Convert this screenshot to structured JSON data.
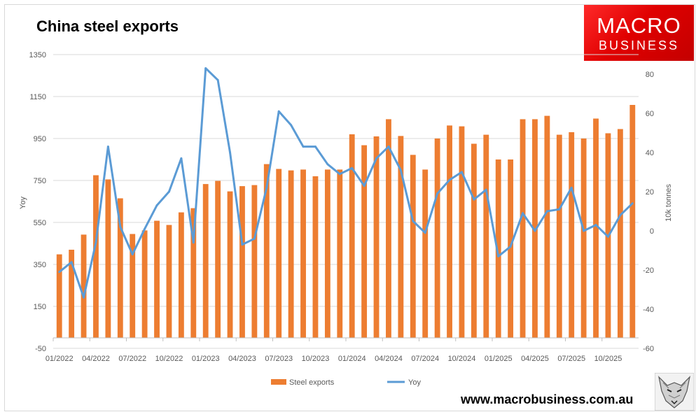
{
  "title": "China steel exports",
  "logo": {
    "line1": "MACRO",
    "line2": "BUSINESS"
  },
  "website": "www.macrobusiness.com.au",
  "colors": {
    "bars": "#ed7d31",
    "line": "#5b9bd5",
    "logo": "#e60000",
    "grid": "#d9d9d9"
  },
  "chart_data": {
    "type": "bar",
    "title": "China steel exports",
    "ylabel": "Yoy",
    "y2label": "10k tonnes",
    "ylim": [
      -50,
      1350
    ],
    "yticks": [
      -50,
      150,
      350,
      550,
      750,
      950,
      1150,
      1350
    ],
    "y2lim": [
      -60,
      90
    ],
    "y2ticks": [
      -60,
      -40,
      -20,
      0,
      20,
      40,
      60,
      80
    ],
    "x_tick_labels": [
      "01/2022",
      "04/2022",
      "07/2022",
      "10/2022",
      "01/2023",
      "04/2023",
      "07/2023",
      "10/2023",
      "01/2024",
      "04/2024",
      "07/2024",
      "10/2024",
      "01/2025",
      "04/2025",
      "07/2025",
      "10/2025"
    ],
    "x": [
      "01/2022",
      "02/2022",
      "03/2022",
      "04/2022",
      "05/2022",
      "06/2022",
      "07/2022",
      "08/2022",
      "09/2022",
      "10/2022",
      "11/2022",
      "12/2022",
      "01/2023",
      "02/2023",
      "03/2023",
      "04/2023",
      "05/2023",
      "06/2023",
      "07/2023",
      "08/2023",
      "09/2023",
      "10/2023",
      "11/2023",
      "12/2023",
      "01/2024",
      "02/2024",
      "03/2024",
      "04/2024",
      "05/2024",
      "06/2024",
      "07/2024",
      "08/2024",
      "09/2024",
      "10/2024",
      "11/2024",
      "12/2024",
      "01/2025",
      "02/2025",
      "03/2025",
      "04/2025",
      "05/2025",
      "06/2025",
      "07/2025",
      "08/2025",
      "09/2025",
      "10/2025",
      "11/2025",
      "12/2025"
    ],
    "series": [
      {
        "name": "Steel exports",
        "type": "bar",
        "axis": "left",
        "values": [
          398,
          420,
          492,
          775,
          755,
          665,
          495,
          512,
          558,
          538,
          598,
          618,
          733,
          748,
          698,
          723,
          728,
          828,
          805,
          798,
          802,
          770,
          802,
          802,
          970,
          918,
          960,
          1042,
          962,
          872,
          802,
          950,
          1012,
          1008,
          925,
          968,
          850,
          850,
          1042,
          1042,
          1058,
          968,
          980,
          950,
          1045,
          975,
          995,
          1110
        ]
      },
      {
        "name": "Yoy",
        "type": "line",
        "axis": "right",
        "values": [
          -21,
          -16,
          -34,
          -6,
          43,
          2,
          -12,
          1,
          13,
          20,
          37,
          -6,
          83,
          77,
          40,
          -7,
          -4,
          22,
          61,
          54,
          43,
          43,
          34,
          29,
          32,
          23,
          37,
          43,
          31,
          5,
          -1,
          19,
          26,
          30,
          16,
          21,
          -13,
          -8,
          9,
          0,
          10,
          11,
          22,
          0,
          3,
          -3,
          8,
          14
        ]
      }
    ],
    "legend": {
      "position": "bottom",
      "entries": [
        "Steel exports",
        "Yoy"
      ]
    },
    "grid": true
  }
}
